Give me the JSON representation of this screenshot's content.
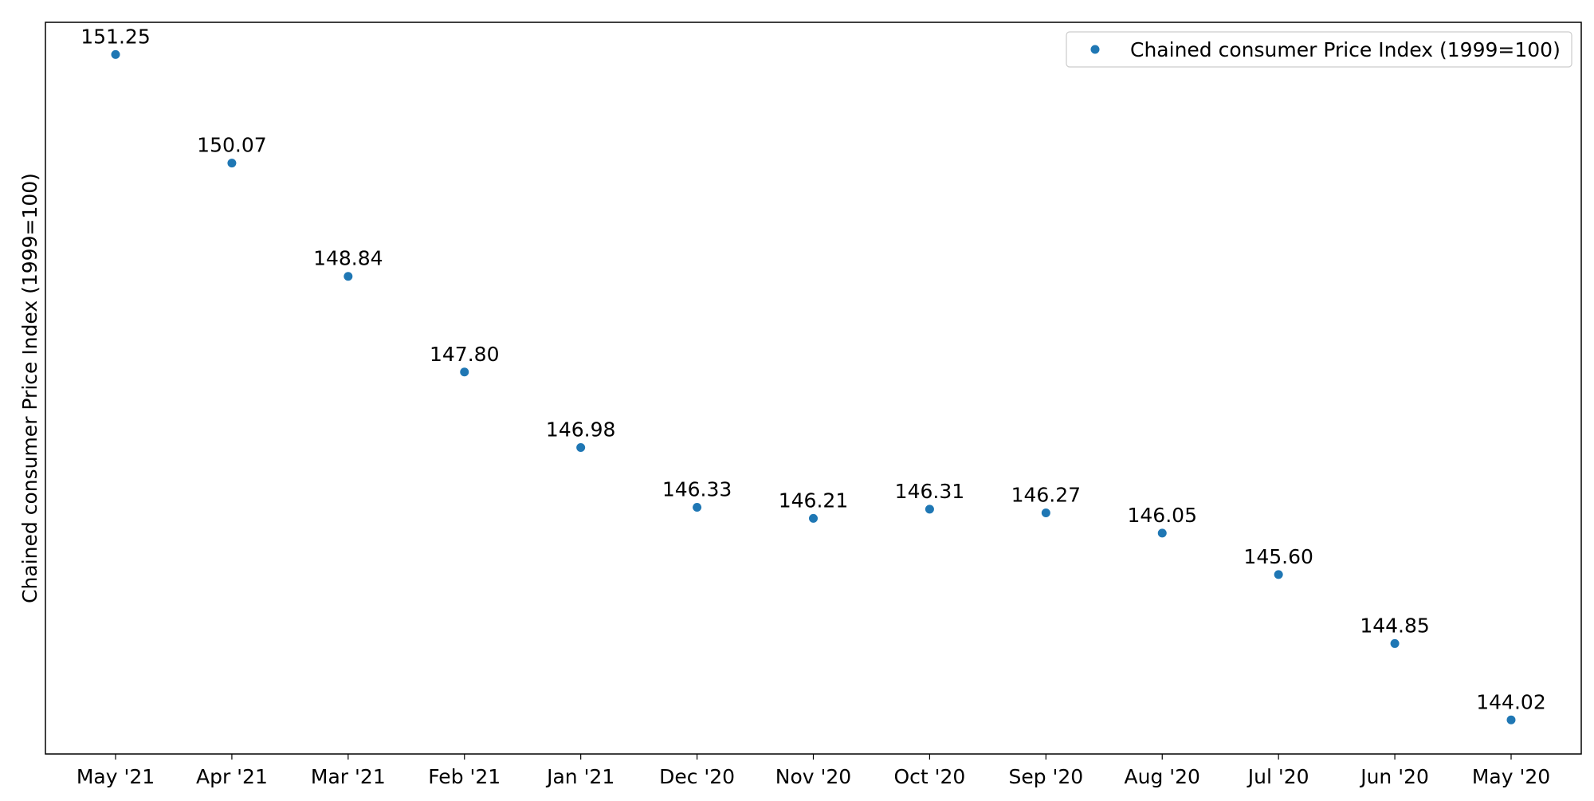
{
  "chart_data": {
    "type": "scatter",
    "title": "",
    "xlabel": "",
    "ylabel": "Chained consumer Price Index (1999=100)",
    "categories": [
      "May '21",
      "Apr '21",
      "Mar '21",
      "Feb '21",
      "Jan '21",
      "Dec '20",
      "Nov '20",
      "Oct '20",
      "Sep '20",
      "Aug '20",
      "Jul '20",
      "Jun '20",
      "May '20"
    ],
    "series": [
      {
        "name": "Chained consumer Price Index (1999=100)",
        "values": [
          151.25,
          150.07,
          148.84,
          147.8,
          146.98,
          146.33,
          146.21,
          146.31,
          146.27,
          146.05,
          145.6,
          144.85,
          144.02
        ],
        "labels": [
          "151.25",
          "150.07",
          "148.84",
          "147.80",
          "146.98",
          "146.33",
          "146.21",
          "146.31",
          "146.27",
          "146.05",
          "145.60",
          "144.85",
          "144.02"
        ],
        "color": "#1f77b4"
      }
    ],
    "ylim": [
      143.65,
      151.6
    ],
    "y_ticks_shown": false,
    "grid": false,
    "legend": "top-right"
  }
}
